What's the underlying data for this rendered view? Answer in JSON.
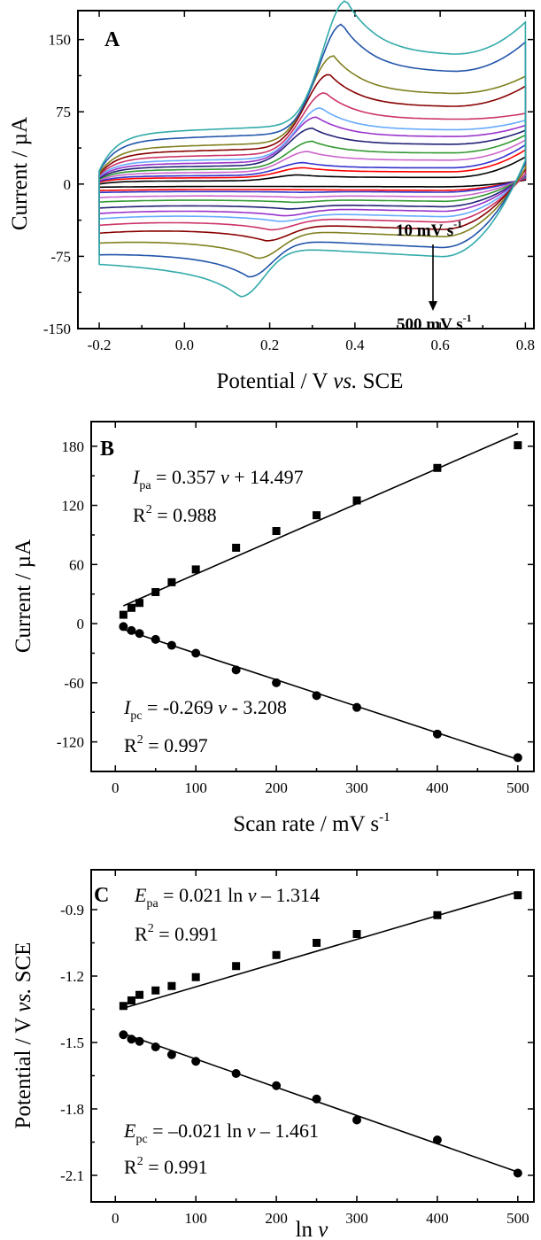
{
  "chart_data": [
    {
      "panel": "A",
      "type": "line",
      "xlabel_prefix": "Potential / V ",
      "xlabel_italic": "vs.",
      "xlabel_suffix": " SCE",
      "ylabel": "Current / µA",
      "xlim": [
        -0.25,
        0.82
      ],
      "ylim": [
        -150,
        180
      ],
      "xticks": [
        -0.2,
        0.0,
        0.2,
        0.4,
        0.6,
        0.8
      ],
      "xtick_labels": [
        "-0.2",
        "0.0",
        "0.2",
        "0.4",
        "0.6",
        "0.8"
      ],
      "yticks": [
        -150,
        -75,
        0,
        75,
        150
      ],
      "ytick_labels": [
        "-150",
        "-75",
        "0",
        "75",
        "150"
      ],
      "grid": false,
      "annotation_top": "10 mV s",
      "annotation_top_sup": "-1",
      "annotation_bottom": "500 mV s",
      "annotation_bottom_sup": "-1",
      "cv_curves": [
        {
          "color": "#000000",
          "ipa": 9,
          "ipc": -3,
          "Epa": 0.27,
          "Epc": 0.3,
          "base_a": 3,
          "base_c": -3,
          "end_up": 28,
          "start_up": 0,
          "start_dn": -4
        },
        {
          "color": "#ff0000",
          "ipa": 16,
          "ipc": -7,
          "Epa": 0.28,
          "Epc": 0.28,
          "base_a": 6,
          "base_c": -7,
          "end_up": 35,
          "start_up": 2,
          "start_dn": -8
        },
        {
          "color": "#3333cc",
          "ipa": 21,
          "ipc": -10,
          "Epa": 0.28,
          "Epc": 0.27,
          "base_a": 8,
          "base_c": -9,
          "end_up": 40,
          "start_up": 3,
          "start_dn": -10
        },
        {
          "color": "#cc66cc",
          "ipa": 32,
          "ipc": -16,
          "Epa": 0.29,
          "Epc": 0.26,
          "base_a": 11,
          "base_c": -14,
          "end_up": 45,
          "start_up": 4,
          "start_dn": -16
        },
        {
          "color": "#339933",
          "ipa": 42,
          "ipc": -22,
          "Epa": 0.3,
          "Epc": 0.25,
          "base_a": 14,
          "base_c": -19,
          "end_up": 50,
          "start_up": 5,
          "start_dn": -21
        },
        {
          "color": "#222277",
          "ipa": 55,
          "ipc": -30,
          "Epa": 0.3,
          "Epc": 0.24,
          "base_a": 17,
          "base_c": -25,
          "end_up": 55,
          "start_up": 6,
          "start_dn": -28
        },
        {
          "color": "#9933cc",
          "ipa": 66,
          "ipc": -38,
          "Epa": 0.31,
          "Epc": 0.23,
          "base_a": 20,
          "base_c": -30,
          "end_up": 60,
          "start_up": 7,
          "start_dn": -34
        },
        {
          "color": "#66aaff",
          "ipa": 75,
          "ipc": -45,
          "Epa": 0.32,
          "Epc": 0.22,
          "base_a": 23,
          "base_c": -36,
          "end_up": 65,
          "start_up": 8,
          "start_dn": -40
        },
        {
          "color": "#cc3366",
          "ipa": 90,
          "ipc": -55,
          "Epa": 0.33,
          "Epc": 0.2,
          "base_a": 27,
          "base_c": -42,
          "end_up": 72,
          "start_up": 9,
          "start_dn": -47
        },
        {
          "color": "#880000",
          "ipa": 108,
          "ipc": -68,
          "Epa": 0.34,
          "Epc": 0.19,
          "base_a": 32,
          "base_c": -50,
          "end_up": 100,
          "start_up": 10,
          "start_dn": -55
        },
        {
          "color": "#808020",
          "ipa": 126,
          "ipc": -88,
          "Epa": 0.35,
          "Epc": 0.17,
          "base_a": 37,
          "base_c": -58,
          "end_up": 110,
          "start_up": 11,
          "start_dn": -64
        },
        {
          "color": "#2255aa",
          "ipa": 157,
          "ipc": -110,
          "Epa": 0.37,
          "Epc": 0.15,
          "base_a": 45,
          "base_c": -70,
          "end_up": 145,
          "start_up": 13,
          "start_dn": -75
        },
        {
          "color": "#33aaaa",
          "ipa": 180,
          "ipc": -133,
          "Epa": 0.38,
          "Epc": 0.13,
          "base_a": 52,
          "base_c": -80,
          "end_up": 165,
          "start_up": 14,
          "start_dn": -82
        }
      ]
    },
    {
      "panel": "B",
      "type": "scatter",
      "xlabel": "Scan rate / mV s",
      "xlabel_sup": "-1",
      "ylabel": "Current / µA",
      "xlim": [
        -30,
        520
      ],
      "ylim": [
        -150,
        205
      ],
      "xticks": [
        0,
        100,
        200,
        300,
        400,
        500
      ],
      "xtick_labels": [
        "0",
        "100",
        "200",
        "300",
        "400",
        "500"
      ],
      "yticks": [
        -120,
        -60,
        0,
        60,
        120,
        180
      ],
      "ytick_labels": [
        "-120",
        "-60",
        "0",
        "60",
        "120",
        "180"
      ],
      "grid": false,
      "series": [
        {
          "marker": "square",
          "x": [
            10,
            20,
            30,
            50,
            70,
            100,
            150,
            200,
            250,
            300,
            400,
            500
          ],
          "y": [
            9,
            16,
            21,
            32,
            42,
            55,
            77,
            94,
            110,
            125,
            158,
            181
          ],
          "fit": {
            "slope": 0.357,
            "intercept": 14.497
          }
        },
        {
          "marker": "circle",
          "x": [
            10,
            20,
            30,
            50,
            70,
            100,
            150,
            200,
            250,
            300,
            400,
            500
          ],
          "y": [
            -3,
            -7,
            -10,
            -16,
            -22,
            -30,
            -47,
            -60,
            -73,
            -85,
            -112,
            -136
          ],
          "fit": {
            "slope": -0.269,
            "intercept": -3.208
          }
        }
      ],
      "eq1_sym": "I",
      "eq1_sub": "pa",
      "eq1_mid": " = 0.357 ",
      "eq1_var": "v",
      "eq1_end": " + 14.497",
      "eq1_r2_pre": "R",
      "eq1_r2_sup": "2",
      "eq1_r2_val": " = 0.988",
      "eq2_sym": "I",
      "eq2_sub": "pc",
      "eq2_mid": " -0.269 ",
      "eq2_var": "v",
      "eq2_end": " - 3.208",
      "eq2_eq": " =",
      "eq2_r2_pre": "R",
      "eq2_r2_sup": "2",
      "eq2_r2_val": " = 0.997"
    },
    {
      "panel": "C",
      "type": "scatter",
      "xlabel": "ln ",
      "xlabel_var": "v",
      "ylabel_prefix": "Potential / V ",
      "ylabel_italic": "vs.",
      "ylabel_suffix": " SCE",
      "xlim": [
        -30,
        520
      ],
      "ylim": [
        -2.22,
        -0.72
      ],
      "xticks": [
        0,
        100,
        200,
        300,
        400,
        500
      ],
      "xtick_labels": [
        "0",
        "100",
        "200",
        "300",
        "400",
        "500"
      ],
      "yticks": [
        -2.1,
        -1.8,
        -1.5,
        -1.2,
        -0.9
      ],
      "ytick_labels": [
        "-2.1",
        "-1.8",
        "-1.5",
        "-1.2",
        "-0.9"
      ],
      "grid": false,
      "series": [
        {
          "marker": "square",
          "x": [
            10,
            20,
            30,
            50,
            70,
            100,
            150,
            200,
            250,
            300,
            400,
            500
          ],
          "y": [
            -1.335,
            -1.31,
            -1.285,
            -1.265,
            -1.245,
            -1.205,
            -1.155,
            -1.105,
            -1.05,
            -1.01,
            -0.925,
            -0.835
          ],
          "fit": {
            "from": [
              10,
              -1.345
            ],
            "to": [
              500,
              -0.82
            ]
          }
        },
        {
          "marker": "circle",
          "x": [
            10,
            20,
            30,
            50,
            70,
            100,
            150,
            200,
            250,
            300,
            400,
            500
          ],
          "y": [
            -1.465,
            -1.485,
            -1.495,
            -1.52,
            -1.555,
            -1.585,
            -1.64,
            -1.695,
            -1.755,
            -1.85,
            -1.94,
            -2.09
          ],
          "fit": {
            "from": [
              10,
              -1.46
            ],
            "to": [
              500,
              -2.085
            ]
          }
        }
      ],
      "eq1_sym": "E",
      "eq1_sub": "pa",
      "eq1_rest": " = 0.021 ln ",
      "eq1_var": "v",
      "eq1_end": " – 1.314",
      "eq1_r2_pre": "R",
      "eq1_r2_sup": "2",
      "eq1_r2_val": " = 0.991",
      "eq2_sym": "E",
      "eq2_sub": "pc",
      "eq2_rest": " = –0.021 ln ",
      "eq2_var": "v",
      "eq2_end": " – 1.461",
      "eq2_r2_pre": "R",
      "eq2_r2_sup": "2",
      "eq2_r2_val": " = 0.991"
    }
  ]
}
